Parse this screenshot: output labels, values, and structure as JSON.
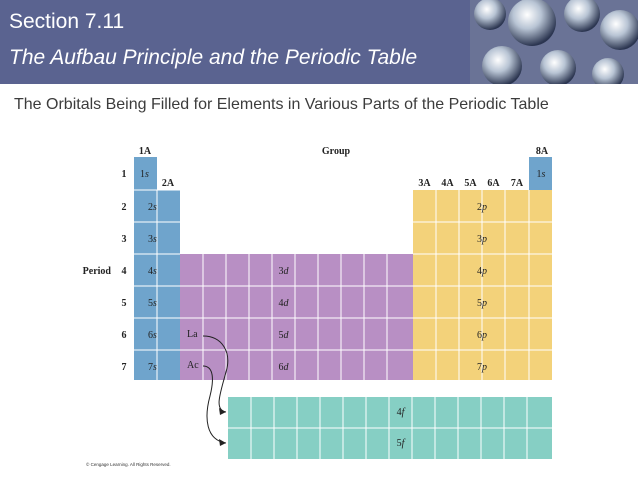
{
  "header": {
    "section": "Section 7.11",
    "subtitle": "The Aufbau Principle and the Periodic Table"
  },
  "slide": {
    "heading": "The Orbitals Being Filled for Elements in Various Parts of the Periodic Table"
  },
  "table": {
    "group_label": "Group",
    "period_label": "Period",
    "periods": [
      "1",
      "2",
      "3",
      "4",
      "5",
      "6",
      "7"
    ],
    "group_labels_s": [
      "1A",
      "2A"
    ],
    "group_labels_p": [
      "3A",
      "4A",
      "5A",
      "6A",
      "7A"
    ],
    "group_label_noble": "8A",
    "s_block": [
      {
        "n": "1",
        "l": "s"
      },
      {
        "n": "2",
        "l": "s"
      },
      {
        "n": "3",
        "l": "s"
      },
      {
        "n": "4",
        "l": "s"
      },
      {
        "n": "5",
        "l": "s"
      },
      {
        "n": "6",
        "l": "s"
      },
      {
        "n": "7",
        "l": "s"
      }
    ],
    "helium": {
      "n": "1",
      "l": "s"
    },
    "p_block": [
      {
        "n": "2",
        "l": "p"
      },
      {
        "n": "3",
        "l": "p"
      },
      {
        "n": "4",
        "l": "p"
      },
      {
        "n": "5",
        "l": "p"
      },
      {
        "n": "6",
        "l": "p"
      },
      {
        "n": "7",
        "l": "p"
      }
    ],
    "d_block": [
      {
        "n": "3",
        "l": "d"
      },
      {
        "n": "4",
        "l": "d"
      },
      {
        "n": "5",
        "l": "d"
      },
      {
        "n": "6",
        "l": "d"
      }
    ],
    "f_block": [
      {
        "n": "4",
        "l": "f"
      },
      {
        "n": "5",
        "l": "f"
      }
    ],
    "lanthanum": "La",
    "actinium": "Ac",
    "colors": {
      "s": "#6fa4cc",
      "p": "#f3d27a",
      "d": "#b88fc4",
      "f": "#86cfc4",
      "grid": "#ffffff",
      "text": "#222222"
    },
    "copyright": "© Cengage Learning. All Rights Reserved."
  }
}
